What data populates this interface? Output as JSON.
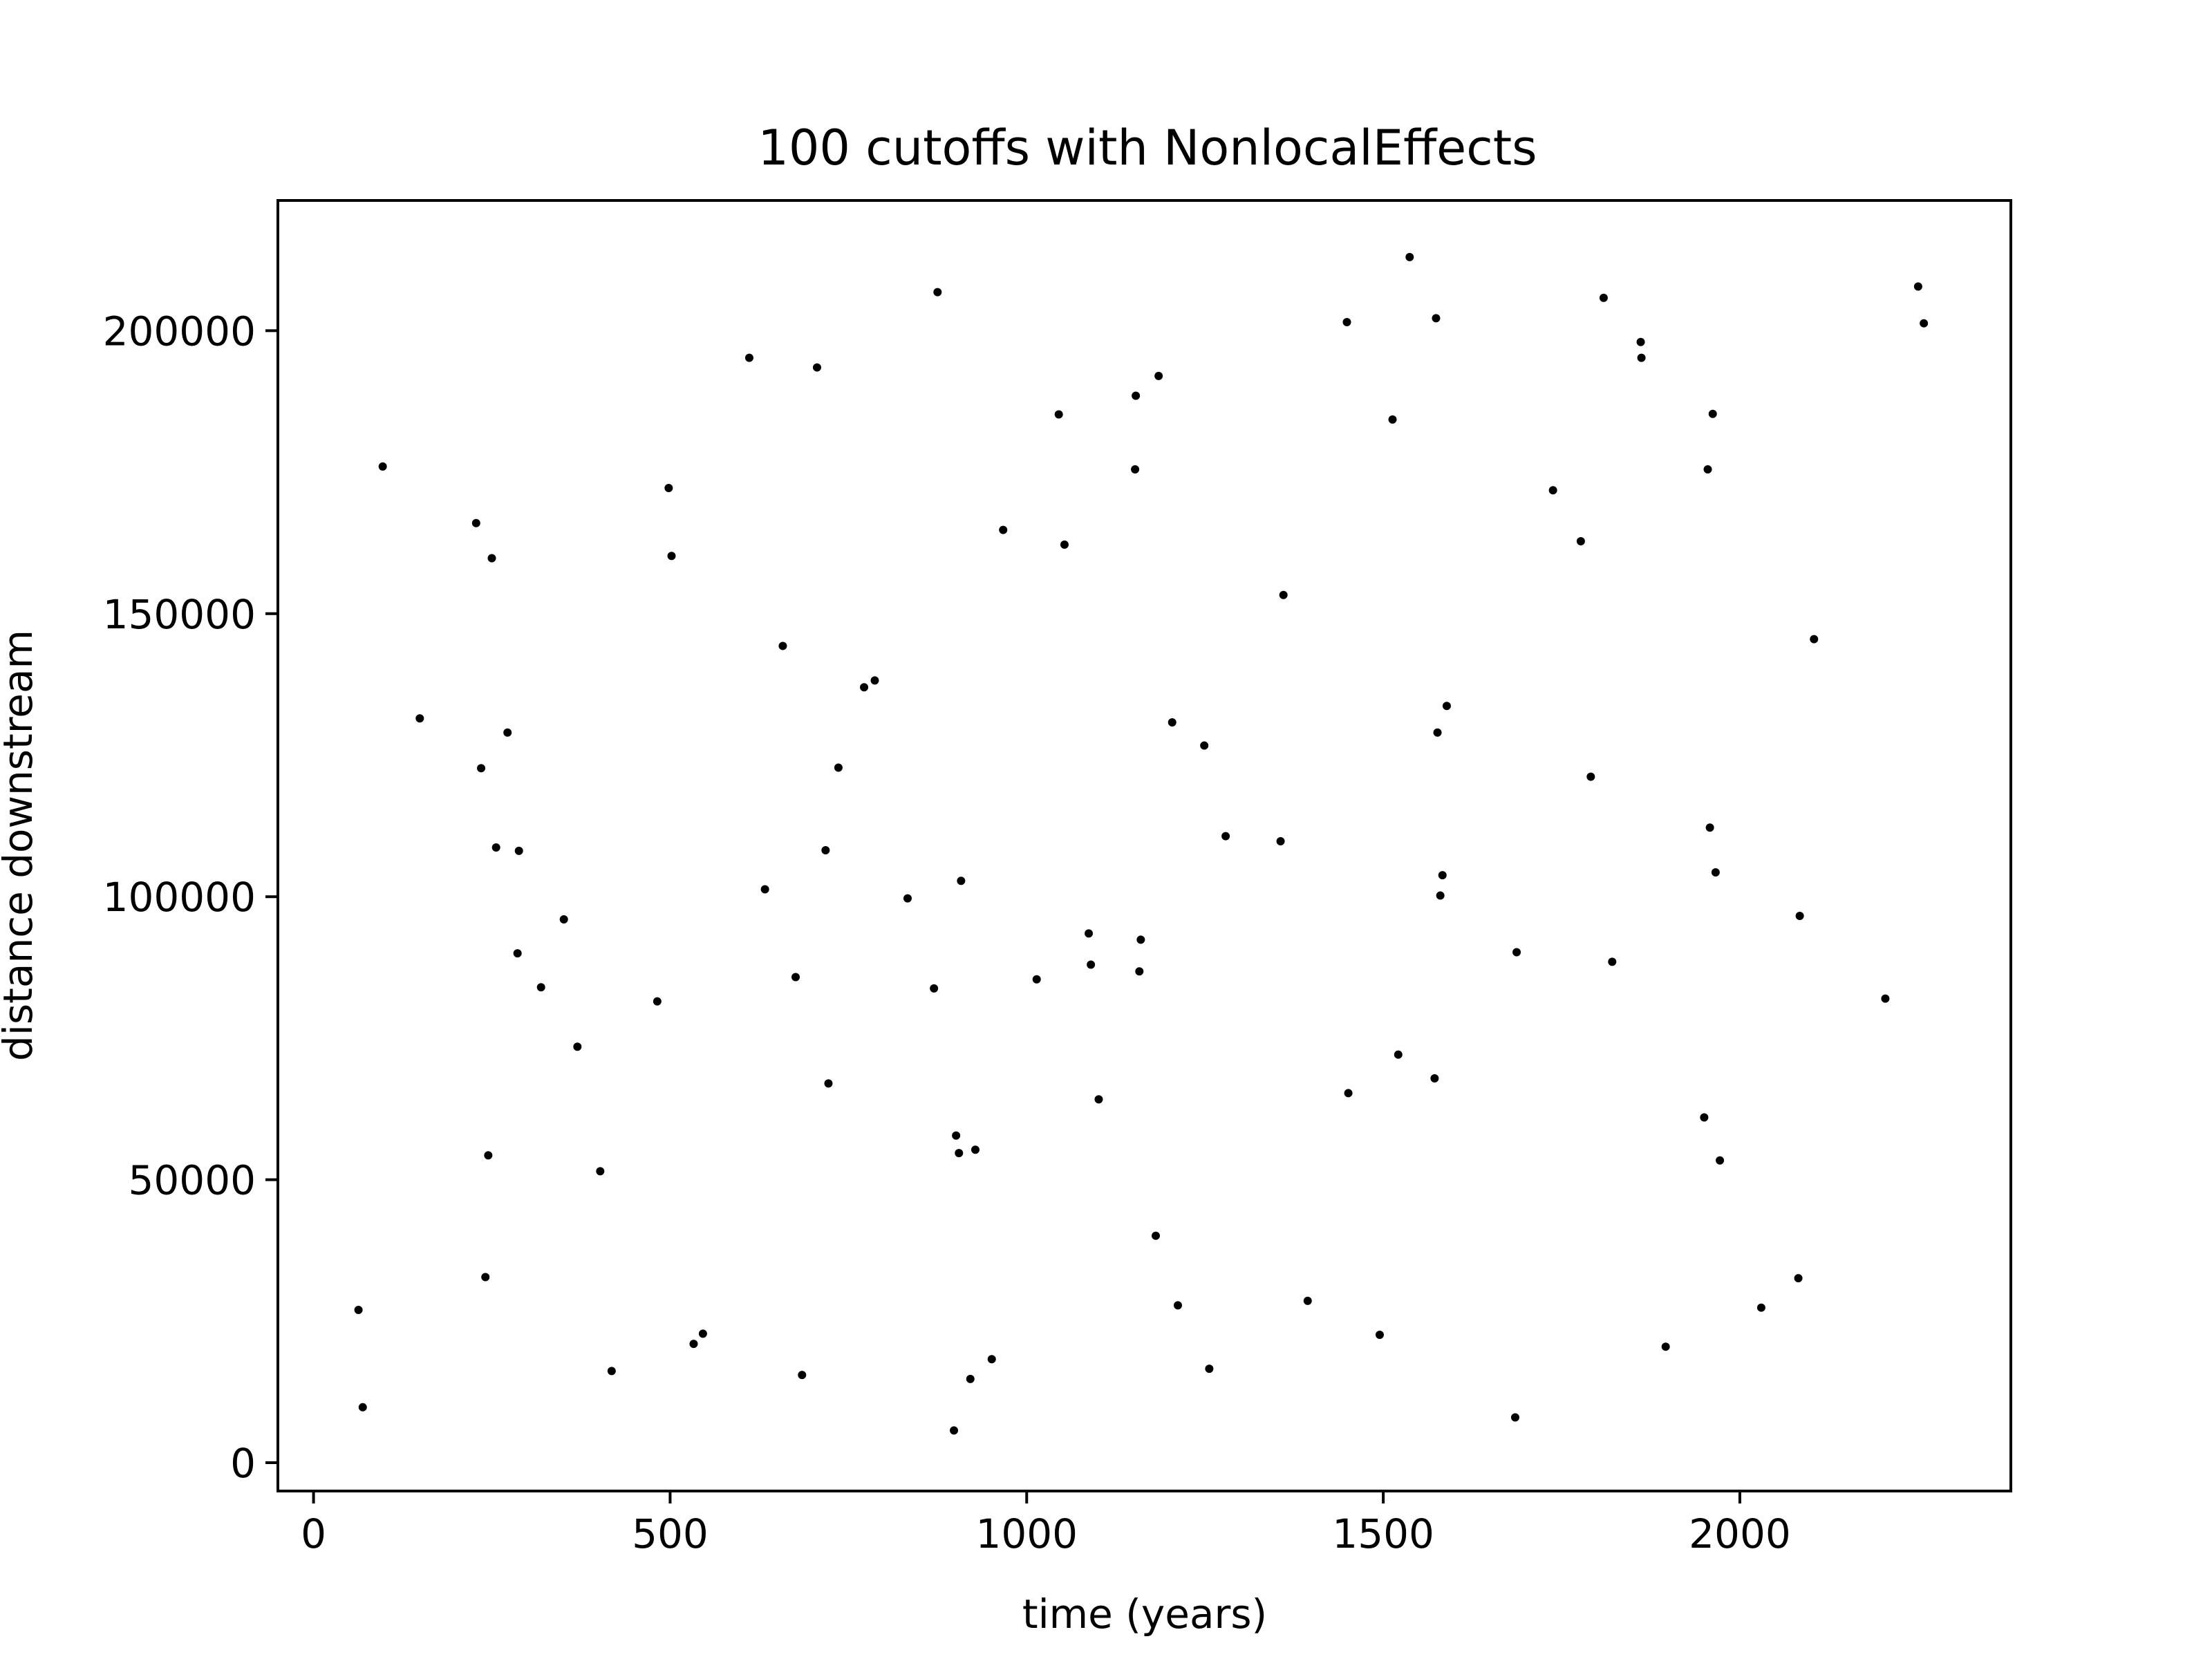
{
  "chart_data": {
    "type": "scatter",
    "title": "100 cutoffs with NonlocalEffects",
    "xlabel": "time (years)",
    "ylabel": "distance downstream",
    "xlim": [
      -50,
      2380
    ],
    "ylim": [
      -5000,
      223000
    ],
    "xticks": [
      {
        "value": 0,
        "label": "0"
      },
      {
        "value": 500,
        "label": "500"
      },
      {
        "value": 1000,
        "label": "1000"
      },
      {
        "value": 1500,
        "label": "1500"
      },
      {
        "value": 2000,
        "label": "2000"
      }
    ],
    "yticks": [
      {
        "value": 0,
        "label": "0"
      },
      {
        "value": 50000,
        "label": "50000"
      },
      {
        "value": 100000,
        "label": "100000"
      },
      {
        "value": 150000,
        "label": "150000"
      },
      {
        "value": 200000,
        "label": "200000"
      }
    ],
    "grid": false,
    "marker_color": "#000000",
    "points": [
      [
        63,
        27000
      ],
      [
        69,
        9800
      ],
      [
        97,
        176000
      ],
      [
        149,
        131500
      ],
      [
        228,
        166000
      ],
      [
        235,
        122700
      ],
      [
        241,
        32800
      ],
      [
        245,
        54300
      ],
      [
        250,
        159800
      ],
      [
        256,
        108700
      ],
      [
        272,
        129000
      ],
      [
        286,
        90000
      ],
      [
        288,
        108100
      ],
      [
        319,
        84000
      ],
      [
        351,
        96000
      ],
      [
        370,
        73500
      ],
      [
        402,
        51500
      ],
      [
        418,
        16200
      ],
      [
        482,
        81500
      ],
      [
        498,
        172200
      ],
      [
        502,
        160200
      ],
      [
        533,
        21000
      ],
      [
        546,
        22800
      ],
      [
        611,
        195200
      ],
      [
        633,
        101300
      ],
      [
        658,
        144300
      ],
      [
        676,
        85800
      ],
      [
        685,
        15500
      ],
      [
        706,
        193500
      ],
      [
        718,
        108200
      ],
      [
        722,
        67000
      ],
      [
        736,
        122800
      ],
      [
        772,
        137000
      ],
      [
        787,
        138200
      ],
      [
        833,
        99700
      ],
      [
        870,
        83800
      ],
      [
        875,
        206800
      ],
      [
        898,
        5700
      ],
      [
        901,
        57800
      ],
      [
        905,
        54700
      ],
      [
        908,
        102800
      ],
      [
        921,
        14800
      ],
      [
        928,
        55300
      ],
      [
        951,
        18300
      ],
      [
        967,
        164800
      ],
      [
        1014,
        85400
      ],
      [
        1045,
        185200
      ],
      [
        1053,
        162200
      ],
      [
        1087,
        93500
      ],
      [
        1090,
        88000
      ],
      [
        1101,
        64200
      ],
      [
        1152,
        175500
      ],
      [
        1153,
        188500
      ],
      [
        1158,
        86800
      ],
      [
        1160,
        92400
      ],
      [
        1181,
        40100
      ],
      [
        1185,
        192000
      ],
      [
        1204,
        130800
      ],
      [
        1212,
        27800
      ],
      [
        1249,
        126700
      ],
      [
        1256,
        16600
      ],
      [
        1279,
        110700
      ],
      [
        1356,
        109800
      ],
      [
        1360,
        153300
      ],
      [
        1394,
        28600
      ],
      [
        1449,
        201500
      ],
      [
        1451,
        65300
      ],
      [
        1495,
        22600
      ],
      [
        1513,
        184300
      ],
      [
        1521,
        72100
      ],
      [
        1537,
        213000
      ],
      [
        1572,
        67900
      ],
      [
        1574,
        202200
      ],
      [
        1576,
        129000
      ],
      [
        1580,
        100200
      ],
      [
        1583,
        103800
      ],
      [
        1589,
        133700
      ],
      [
        1685,
        8000
      ],
      [
        1687,
        90200
      ],
      [
        1738,
        171800
      ],
      [
        1777,
        162800
      ],
      [
        1791,
        121200
      ],
      [
        1809,
        205800
      ],
      [
        1821,
        88500
      ],
      [
        1861,
        198000
      ],
      [
        1862,
        195200
      ],
      [
        1896,
        20500
      ],
      [
        1950,
        61000
      ],
      [
        1955,
        175500
      ],
      [
        1958,
        112200
      ],
      [
        1962,
        185300
      ],
      [
        1966,
        104300
      ],
      [
        1972,
        53400
      ],
      [
        2030,
        27400
      ],
      [
        2082,
        32600
      ],
      [
        2084,
        96600
      ],
      [
        2104,
        145500
      ],
      [
        2204,
        82000
      ],
      [
        2250,
        207800
      ],
      [
        2258,
        201300
      ]
    ]
  }
}
